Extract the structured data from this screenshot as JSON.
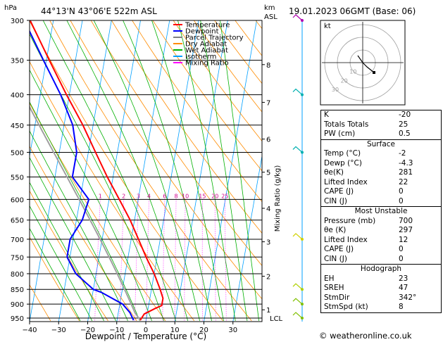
{
  "header": {
    "pressure_unit": "hPa",
    "location": "44°13'N  43°06'E  522m  ASL",
    "height_unit": "km",
    "height_unit2": "ASL",
    "datetime": "19.01.2023  06GMT  (Base: 06)"
  },
  "legend": [
    {
      "label": "Temperature",
      "color": "#ff0000"
    },
    {
      "label": "Dewpoint",
      "color": "#0000ff"
    },
    {
      "label": "Parcel Trajectory",
      "color": "#808080"
    },
    {
      "label": "Dry Adiabat",
      "color": "#ff8c00"
    },
    {
      "label": "Wet Adiabat",
      "color": "#00b000"
    },
    {
      "label": "Isotherm",
      "color": "#00a0ff"
    },
    {
      "label": "Mixing Ratio",
      "color": "#ff00ff"
    }
  ],
  "chart_data": {
    "type": "line",
    "xlabel": "Dewpoint / Temperature (°C)",
    "ylabel_right": "Mixing Ratio (g/kg)",
    "x_ticks": [
      -40,
      -30,
      -20,
      -10,
      0,
      10,
      20,
      30
    ],
    "x_tick_labels": [
      "−40",
      "−30",
      "−20",
      "−10",
      "0",
      "10",
      "20",
      "30"
    ],
    "pressure_levels": [
      300,
      350,
      400,
      450,
      500,
      550,
      600,
      650,
      700,
      750,
      800,
      850,
      900,
      950
    ],
    "pressure_labels": [
      "300",
      "350",
      "400",
      "450",
      "500",
      "550",
      "600",
      "650",
      "700",
      "750",
      "800",
      "850",
      "900",
      "950"
    ],
    "km_ticks": [
      {
        "p": 356,
        "label": "8"
      },
      {
        "p": 412,
        "label": "7"
      },
      {
        "p": 475,
        "label": "6"
      },
      {
        "p": 540,
        "label": "5"
      },
      {
        "p": 621,
        "label": "4"
      },
      {
        "p": 707,
        "label": "3"
      },
      {
        "p": 808,
        "label": "2"
      },
      {
        "p": 920,
        "label": "1"
      }
    ],
    "lcl": {
      "p": 930,
      "label": "LCL"
    },
    "mixing_ratio_labels": [
      "1",
      "2",
      "3",
      "4",
      "6",
      "8",
      "10",
      "15",
      "20",
      "25"
    ],
    "mixing_ratios": [
      1,
      2,
      3,
      4,
      6,
      8,
      10,
      15,
      20,
      25
    ],
    "series": [
      {
        "name": "Temperature",
        "color": "#ff0000",
        "points": [
          {
            "p": 958,
            "t": -2
          },
          {
            "p": 935,
            "t": -1
          },
          {
            "p": 915,
            "t": 2.5
          },
          {
            "p": 905,
            "t": 4.5
          },
          {
            "p": 880,
            "t": 4.5
          },
          {
            "p": 850,
            "t": 3
          },
          {
            "p": 800,
            "t": 0
          },
          {
            "p": 750,
            "t": -3.8
          },
          {
            "p": 700,
            "t": -7.5
          },
          {
            "p": 650,
            "t": -11.5
          },
          {
            "p": 600,
            "t": -16.5
          },
          {
            "p": 550,
            "t": -22
          },
          {
            "p": 500,
            "t": -27.5
          },
          {
            "p": 450,
            "t": -33.5
          },
          {
            "p": 400,
            "t": -41
          },
          {
            "p": 350,
            "t": -49
          },
          {
            "p": 300,
            "t": -58
          }
        ]
      },
      {
        "name": "Dewpoint",
        "color": "#0000ff",
        "points": [
          {
            "p": 958,
            "t": -4.3
          },
          {
            "p": 930,
            "t": -6
          },
          {
            "p": 900,
            "t": -9
          },
          {
            "p": 860,
            "t": -17
          },
          {
            "p": 850,
            "t": -20
          },
          {
            "p": 800,
            "t": -27
          },
          {
            "p": 750,
            "t": -31
          },
          {
            "p": 700,
            "t": -31
          },
          {
            "p": 650,
            "t": -28
          },
          {
            "p": 600,
            "t": -27
          },
          {
            "p": 550,
            "t": -34
          },
          {
            "p": 500,
            "t": -34
          },
          {
            "p": 450,
            "t": -37
          },
          {
            "p": 400,
            "t": -43
          },
          {
            "p": 350,
            "t": -51
          },
          {
            "p": 300,
            "t": -60
          }
        ]
      }
    ],
    "parcel": {
      "name": "Parcel Trajectory",
      "color": "#a0a0a0",
      "surface_t": -2,
      "surface_td": -4.3,
      "surface_p": 958
    }
  },
  "hodograph": {
    "label": "kt",
    "ring_labels": [
      "10",
      "20",
      "30"
    ],
    "storm_motion": {
      "dir_deg": 342,
      "speed_kt": 8
    }
  },
  "indices": [
    {
      "label": "K",
      "value": "-20"
    },
    {
      "label": "Totals Totals",
      "value": "25"
    },
    {
      "label": "PW (cm)",
      "value": "0.5"
    }
  ],
  "surface": {
    "title": "Surface",
    "rows": [
      {
        "label": "Temp (°C)",
        "value": "-2"
      },
      {
        "label": "Dewp (°C)",
        "value": "-4.3"
      },
      {
        "label": "θe(K)",
        "value": "281"
      },
      {
        "label": "Lifted Index",
        "value": "22"
      },
      {
        "label": "CAPE (J)",
        "value": "0"
      },
      {
        "label": "CIN (J)",
        "value": "0"
      }
    ]
  },
  "most_unstable": {
    "title": "Most Unstable",
    "rows": [
      {
        "label": "Pressure (mb)",
        "value": "700"
      },
      {
        "label": "θe (K)",
        "value": "297"
      },
      {
        "label": "Lifted Index",
        "value": "12"
      },
      {
        "label": "CAPE (J)",
        "value": "0"
      },
      {
        "label": "CIN (J)",
        "value": "0"
      }
    ]
  },
  "hodograph_params": {
    "title": "Hodograph",
    "rows": [
      {
        "label": "EH",
        "value": "23"
      },
      {
        "label": "SREH",
        "value": "47"
      },
      {
        "label": "StmDir",
        "value": "342°"
      },
      {
        "label": "StmSpd (kt)",
        "value": "8"
      }
    ]
  },
  "credit": "© weatheronline.co.uk"
}
